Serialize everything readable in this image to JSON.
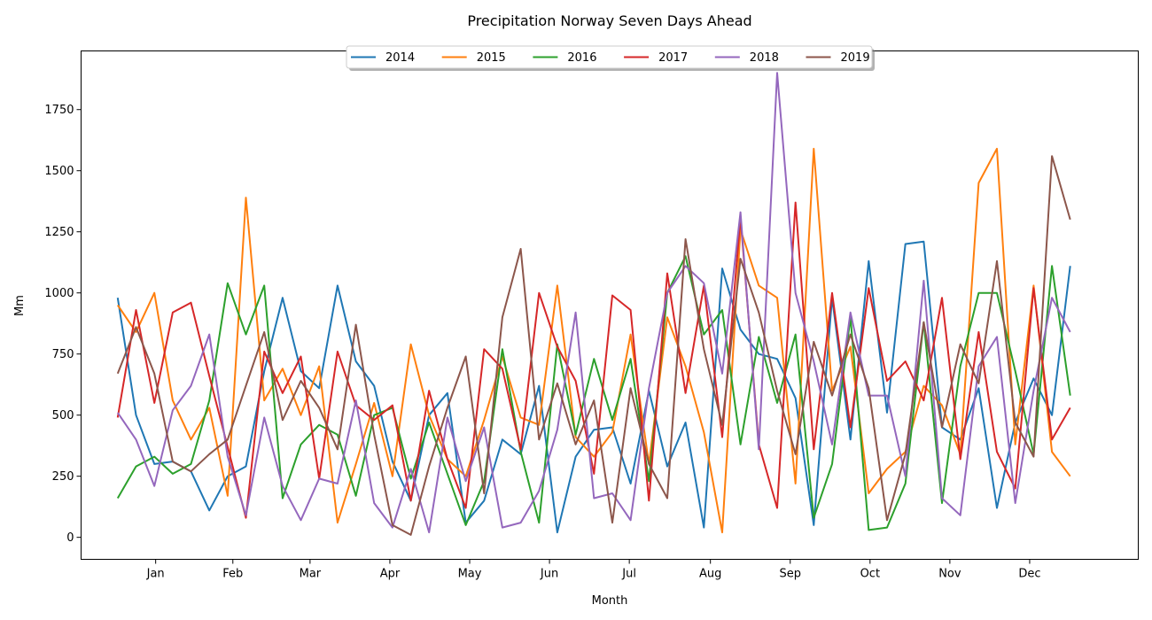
{
  "chart_data": {
    "type": "line",
    "title": "Precipitation Norway Seven Days Ahead",
    "xlabel": "Month",
    "ylabel": "Mm",
    "x_ticks": [
      "Jan",
      "Feb",
      "Mar",
      "Apr",
      "May",
      "Jun",
      "Jul",
      "Aug",
      "Sep",
      "Oct",
      "Nov",
      "Dec"
    ],
    "y_ticks": [
      0,
      250,
      500,
      750,
      1000,
      1250,
      1500,
      1750
    ],
    "ylim": [
      -90,
      1990
    ],
    "grid": false,
    "legend_position": "top-center",
    "colors": {
      "2014": "#1f77b4",
      "2015": "#ff7f0e",
      "2016": "#2ca02c",
      "2017": "#d62728",
      "2018": "#9467bd",
      "2019": "#8c564b"
    },
    "x_note": "x values are approximate day-of-year positions (month ticks at month centres)",
    "series": [
      {
        "name": "2014",
        "x": [
          1,
          8,
          15,
          22,
          29,
          36,
          43,
          50,
          57,
          64,
          71,
          78,
          85,
          92,
          99,
          106,
          113,
          120,
          127,
          134,
          141,
          148,
          155,
          162,
          169,
          176,
          183,
          190,
          197,
          204,
          211,
          218,
          225,
          232,
          239,
          246,
          253,
          260,
          267,
          274,
          281,
          288,
          295,
          302,
          309,
          316,
          323,
          330,
          337,
          344,
          351,
          358,
          365
        ],
        "y": [
          980,
          500,
          300,
          310,
          270,
          110,
          250,
          290,
          680,
          980,
          680,
          610,
          1030,
          720,
          620,
          310,
          150,
          500,
          590,
          60,
          150,
          400,
          340,
          620,
          20,
          330,
          440,
          450,
          220,
          600,
          290,
          470,
          40,
          1100,
          850,
          750,
          730,
          570,
          50,
          980,
          400,
          1130,
          510,
          1200,
          1210,
          450,
          400,
          610,
          120,
          470,
          650,
          500,
          1110
        ]
      },
      {
        "name": "2015",
        "x": [
          1,
          8,
          15,
          22,
          29,
          36,
          43,
          50,
          57,
          64,
          71,
          78,
          85,
          92,
          99,
          106,
          113,
          120,
          127,
          134,
          141,
          148,
          155,
          162,
          169,
          176,
          183,
          190,
          197,
          204,
          211,
          218,
          225,
          232,
          239,
          246,
          253,
          260,
          267,
          274,
          281,
          288,
          295,
          302,
          309,
          316,
          323,
          330,
          337,
          344,
          351,
          358,
          365
        ],
        "y": [
          950,
          840,
          1000,
          560,
          400,
          530,
          170,
          1390,
          560,
          690,
          500,
          700,
          60,
          300,
          550,
          250,
          790,
          500,
          320,
          250,
          480,
          740,
          490,
          460,
          1030,
          410,
          330,
          430,
          830,
          300,
          900,
          700,
          430,
          20,
          1260,
          1030,
          980,
          220,
          1590,
          600,
          780,
          180,
          280,
          350,
          620,
          540,
          340,
          1450,
          1590,
          380,
          1030,
          350,
          250
        ]
      },
      {
        "name": "2016",
        "x": [
          1,
          8,
          15,
          22,
          29,
          36,
          43,
          50,
          57,
          64,
          71,
          78,
          85,
          92,
          99,
          106,
          113,
          120,
          127,
          134,
          141,
          148,
          155,
          162,
          169,
          176,
          183,
          190,
          197,
          204,
          211,
          218,
          225,
          232,
          239,
          246,
          253,
          260,
          267,
          274,
          281,
          288,
          295,
          302,
          309,
          316,
          323,
          330,
          337,
          344,
          351,
          358,
          365
        ],
        "y": [
          160,
          290,
          330,
          260,
          300,
          560,
          1040,
          830,
          1030,
          160,
          380,
          460,
          420,
          170,
          500,
          530,
          240,
          470,
          260,
          50,
          230,
          770,
          350,
          60,
          790,
          420,
          730,
          480,
          730,
          230,
          1000,
          1150,
          830,
          930,
          380,
          820,
          550,
          830,
          80,
          300,
          900,
          30,
          40,
          220,
          880,
          140,
          700,
          1000,
          1000,
          680,
          340,
          1110,
          580
        ]
      },
      {
        "name": "2017",
        "x": [
          1,
          8,
          15,
          22,
          29,
          36,
          43,
          50,
          57,
          64,
          71,
          78,
          85,
          92,
          99,
          106,
          113,
          120,
          127,
          134,
          141,
          148,
          155,
          162,
          169,
          176,
          183,
          190,
          197,
          204,
          211,
          218,
          225,
          232,
          239,
          246,
          253,
          260,
          267,
          274,
          281,
          288,
          295,
          302,
          309,
          316,
          323,
          330,
          337,
          344,
          351,
          358,
          365
        ],
        "y": [
          490,
          930,
          550,
          920,
          960,
          660,
          370,
          80,
          760,
          590,
          740,
          240,
          760,
          540,
          480,
          540,
          150,
          600,
          320,
          120,
          770,
          690,
          360,
          1000,
          780,
          640,
          260,
          990,
          930,
          150,
          1080,
          590,
          1030,
          410,
          1310,
          380,
          120,
          1370,
          360,
          1000,
          450,
          1020,
          640,
          720,
          560,
          980,
          320,
          840,
          350,
          200,
          1020,
          400,
          530
        ]
      },
      {
        "name": "2018",
        "x": [
          1,
          8,
          15,
          22,
          29,
          36,
          43,
          50,
          57,
          64,
          71,
          78,
          85,
          92,
          99,
          106,
          113,
          120,
          127,
          134,
          141,
          148,
          155,
          162,
          169,
          176,
          183,
          190,
          197,
          204,
          211,
          218,
          225,
          232,
          239,
          246,
          253,
          260,
          267,
          274,
          281,
          288,
          295,
          302,
          309,
          316,
          323,
          330,
          337,
          344,
          351,
          358,
          365
        ],
        "y": [
          510,
          400,
          210,
          520,
          620,
          830,
          330,
          90,
          490,
          210,
          70,
          240,
          220,
          560,
          140,
          40,
          280,
          20,
          490,
          230,
          450,
          40,
          60,
          190,
          440,
          920,
          160,
          180,
          70,
          610,
          1000,
          1110,
          1040,
          670,
          1330,
          360,
          1900,
          1000,
          720,
          380,
          920,
          580,
          580,
          250,
          1050,
          160,
          90,
          700,
          820,
          140,
          600,
          980,
          840
        ]
      },
      {
        "name": "2019",
        "x": [
          1,
          8,
          15,
          22,
          29,
          36,
          43,
          50,
          57,
          64,
          71,
          78,
          85,
          92,
          99,
          106,
          113,
          120,
          127,
          134,
          141,
          148,
          155,
          162,
          169,
          176,
          183,
          190,
          197,
          204,
          211,
          218,
          225,
          232,
          239,
          246,
          253,
          260,
          267,
          274,
          281,
          288,
          295,
          302,
          309,
          316,
          323,
          330,
          337,
          344,
          351,
          358,
          365
        ],
        "y": [
          670,
          860,
          670,
          310,
          270,
          340,
          400,
          620,
          840,
          480,
          640,
          530,
          360,
          870,
          420,
          50,
          10,
          290,
          530,
          740,
          180,
          900,
          1180,
          400,
          630,
          380,
          560,
          60,
          610,
          300,
          160,
          1220,
          770,
          460,
          1140,
          920,
          600,
          340,
          800,
          580,
          830,
          610,
          70,
          340,
          880,
          450,
          790,
          630,
          1130,
          470,
          330,
          1560,
          1300
        ]
      }
    ]
  }
}
